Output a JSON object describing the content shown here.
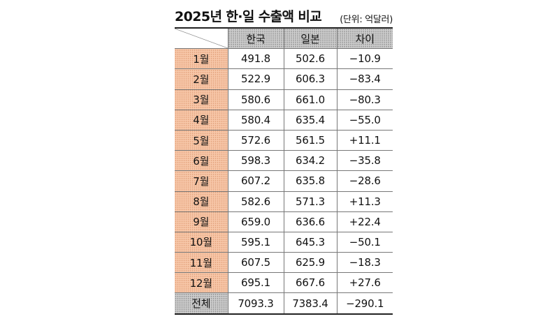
{
  "header": {
    "title": "2025년 한·일 수출액 비교",
    "unit": "(단위: 억달러)"
  },
  "table": {
    "columns": [
      "한국",
      "일본",
      "차이"
    ],
    "rows": [
      {
        "label": "1월",
        "korea": "491.8",
        "japan": "502.6",
        "diff": "−10.9"
      },
      {
        "label": "2월",
        "korea": "522.9",
        "japan": "606.3",
        "diff": "−83.4"
      },
      {
        "label": "3월",
        "korea": "580.6",
        "japan": "661.0",
        "diff": "−80.3"
      },
      {
        "label": "4월",
        "korea": "580.4",
        "japan": "635.4",
        "diff": "−55.0"
      },
      {
        "label": "5월",
        "korea": "572.6",
        "japan": "561.5",
        "diff": "+11.1"
      },
      {
        "label": "6월",
        "korea": "598.3",
        "japan": "634.2",
        "diff": "−35.8"
      },
      {
        "label": "7월",
        "korea": "607.2",
        "japan": "635.8",
        "diff": "−28.6"
      },
      {
        "label": "8월",
        "korea": "582.6",
        "japan": "571.3",
        "diff": "+11.3"
      },
      {
        "label": "9월",
        "korea": "659.0",
        "japan": "636.6",
        "diff": "+22.4"
      },
      {
        "label": "10월",
        "korea": "595.1",
        "japan": "645.3",
        "diff": "−50.1"
      },
      {
        "label": "11월",
        "korea": "607.5",
        "japan": "625.9",
        "diff": "−18.3"
      },
      {
        "label": "12월",
        "korea": "695.1",
        "japan": "667.6",
        "diff": "+27.6"
      }
    ],
    "total": {
      "label": "전체",
      "korea": "7093.3",
      "japan": "7383.4",
      "diff": "−290.1"
    }
  }
}
